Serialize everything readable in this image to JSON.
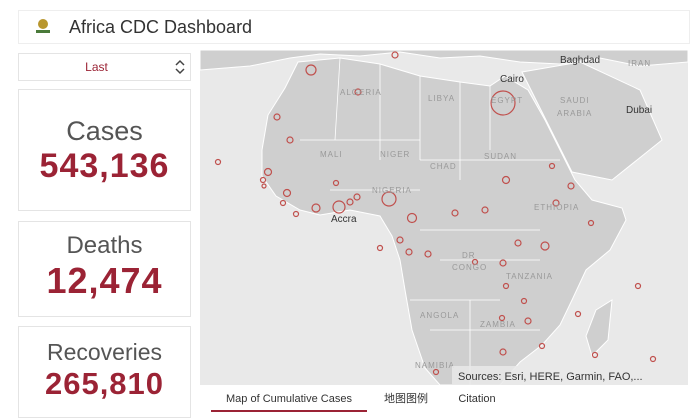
{
  "header": {
    "title": "Africa CDC Dashboard"
  },
  "selector": {
    "value": "Last"
  },
  "cards": [
    {
      "label": "Cases",
      "value": "543,136"
    },
    {
      "label": "Deaths",
      "value": "12,474"
    },
    {
      "label": "Recoveries",
      "value": "265,810"
    }
  ],
  "map": {
    "labels": [
      "Baghdad",
      "IRAN",
      "Cairo",
      "EGYPT",
      "ALGERIA",
      "LIBYA",
      "SAUDI",
      "ARABIA",
      "Dubai",
      "MALI",
      "NIGER",
      "CHAD",
      "SUDAN",
      "NIGERIA",
      "ETHIOPIA",
      "Accra",
      "DR",
      "CONGO",
      "TANZANIA",
      "ANGOLA",
      "ZAMBIA",
      "NAMIBIA"
    ],
    "attribution": "Sources: Esri, HERE, Garmin, FAO,..."
  },
  "tabs": [
    "Map of Cumulative Cases",
    "地图图例",
    "Citation"
  ]
}
